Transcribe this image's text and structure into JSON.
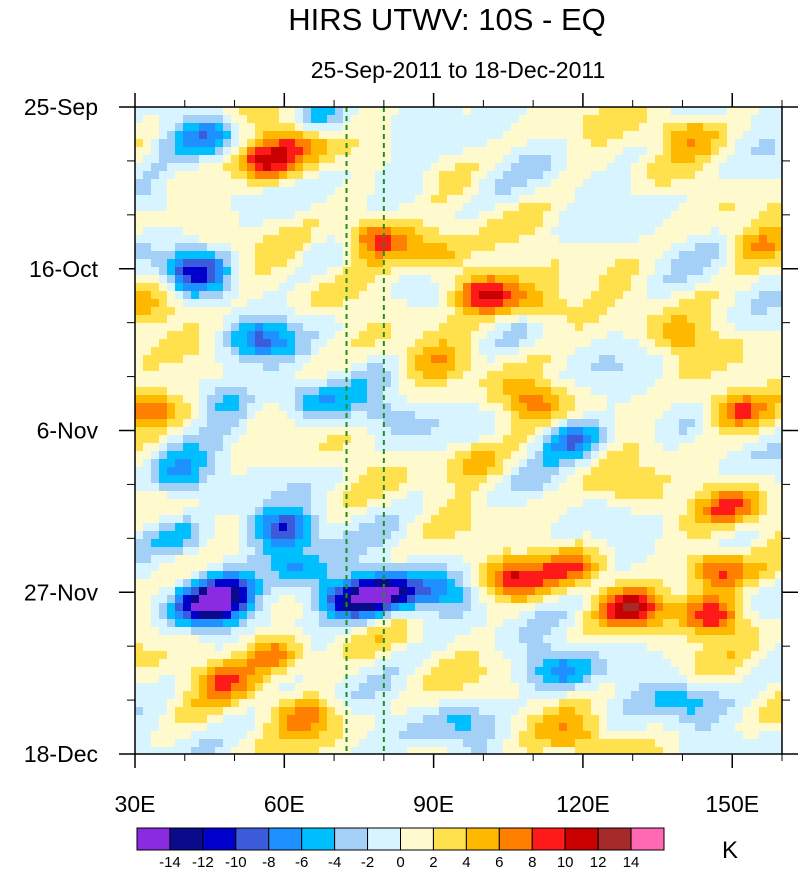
{
  "chart_data": {
    "type": "heatmap",
    "title": "HIRS UTWV: 10S - EQ",
    "subtitle": "25-Sep-2011 to 18-Dec-2011",
    "x_axis": {
      "range": [
        30,
        160
      ],
      "ticks": [
        30,
        60,
        90,
        120,
        150
      ],
      "tick_labels": [
        "30E",
        "60E",
        "90E",
        "120E",
        "150E"
      ]
    },
    "y_axis": {
      "range_days": [
        0,
        84
      ],
      "ticks_days": [
        0,
        21,
        42,
        63,
        84
      ],
      "tick_labels": [
        "25-Sep",
        "16-Oct",
        "6-Nov",
        "27-Nov",
        "18-Dec"
      ],
      "direction": "time increases downward"
    },
    "reference_lines": {
      "style": "dashed",
      "color": "#1f8f1f",
      "longitudes": [
        72.5,
        80
      ]
    },
    "colorbar": {
      "unit": "K",
      "levels": [
        -14,
        -12,
        -10,
        -8,
        -6,
        -4,
        -2,
        0,
        2,
        4,
        6,
        8,
        10,
        12,
        14
      ],
      "tick_labels": [
        "-14",
        "-12",
        "-10",
        "-8",
        "-6",
        "-4",
        "-2",
        "0",
        "2",
        "4",
        "6",
        "8",
        "10",
        "12",
        "14"
      ],
      "colors": [
        "#8a2be2",
        "#0a0a8c",
        "#0000cd",
        "#3b5bdb",
        "#1e90ff",
        "#00bfff",
        "#a4cff7",
        "#d8f5ff",
        "#fffacd",
        "#ffe04d",
        "#ffb800",
        "#ff7f00",
        "#ff1a1a",
        "#c80000",
        "#a52a2a",
        "#ff69b4"
      ]
    },
    "features": [
      {
        "lon": 56,
        "day": 7,
        "value": 12
      },
      {
        "lon": 62,
        "day": 4,
        "value": 7
      },
      {
        "lon": 45,
        "day": 4,
        "value": -7
      },
      {
        "lon": 68,
        "day": 2,
        "value": -6
      },
      {
        "lon": 78,
        "day": 17,
        "value": 10
      },
      {
        "lon": 90,
        "day": 19,
        "value": 6
      },
      {
        "lon": 100,
        "day": 24,
        "value": 11
      },
      {
        "lon": 112,
        "day": 26,
        "value": 6
      },
      {
        "lon": 140,
        "day": 3,
        "value": 6
      },
      {
        "lon": 42,
        "day": 21,
        "value": -11
      },
      {
        "lon": 55,
        "day": 30,
        "value": -7
      },
      {
        "lon": 35,
        "day": 26,
        "value": 6
      },
      {
        "lon": 31,
        "day": 39,
        "value": 10
      },
      {
        "lon": 48,
        "day": 38,
        "value": -6
      },
      {
        "lon": 65,
        "day": 38,
        "value": -6
      },
      {
        "lon": 80,
        "day": 40,
        "value": -4
      },
      {
        "lon": 110,
        "day": 38,
        "value": 6
      },
      {
        "lon": 150,
        "day": 39,
        "value": 9
      },
      {
        "lon": 118,
        "day": 43,
        "value": -8
      },
      {
        "lon": 98,
        "day": 46,
        "value": 5
      },
      {
        "lon": 60,
        "day": 55,
        "value": -10
      },
      {
        "lon": 50,
        "day": 63,
        "value": -9
      },
      {
        "lon": 62,
        "day": 60,
        "value": -8
      },
      {
        "lon": 73,
        "day": 64,
        "value": -12
      },
      {
        "lon": 80,
        "day": 63,
        "value": -12
      },
      {
        "lon": 45,
        "day": 65,
        "value": -13
      },
      {
        "lon": 90,
        "day": 63,
        "value": -6
      },
      {
        "lon": 105,
        "day": 61,
        "value": 9
      },
      {
        "lon": 118,
        "day": 60,
        "value": 6
      },
      {
        "lon": 130,
        "day": 65,
        "value": 9
      },
      {
        "lon": 146,
        "day": 66,
        "value": 10
      },
      {
        "lon": 147,
        "day": 60,
        "value": 10
      },
      {
        "lon": 40,
        "day": 56,
        "value": -6
      },
      {
        "lon": 58,
        "day": 71,
        "value": 8
      },
      {
        "lon": 48,
        "day": 74,
        "value": 6
      },
      {
        "lon": 64,
        "day": 79,
        "value": 6
      },
      {
        "lon": 115,
        "day": 73,
        "value": -6
      },
      {
        "lon": 140,
        "day": 77,
        "value": -5
      },
      {
        "lon": 150,
        "day": 52,
        "value": 6
      },
      {
        "lon": 130,
        "day": 50,
        "value": 4
      },
      {
        "lon": 90,
        "day": 33,
        "value": 4
      },
      {
        "lon": 140,
        "day": 30,
        "value": 4
      },
      {
        "lon": 35,
        "day": 12,
        "value": -4
      },
      {
        "lon": 85,
        "day": 10,
        "value": -3
      },
      {
        "lon": 155,
        "day": 18,
        "value": 5
      },
      {
        "lon": 40,
        "day": 48,
        "value": -6
      },
      {
        "lon": 120,
        "day": 82,
        "value": 5
      },
      {
        "lon": 96,
        "day": 80,
        "value": -4
      }
    ]
  }
}
